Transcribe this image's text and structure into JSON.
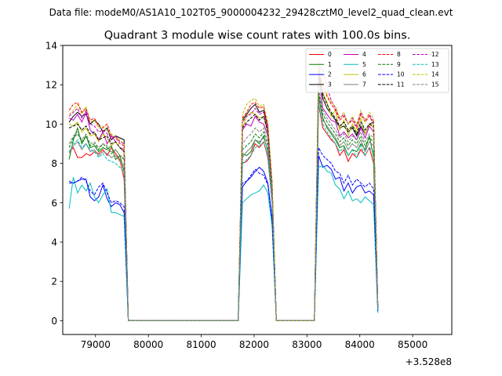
{
  "chart_data": {
    "type": "line",
    "suptitle": "Data file: modeM0/AS1A10_102T05_9000004232_29428cztM0_level2_quad_clean.evt",
    "title": "Quadrant 3 module wise count rates with 100.0s bins.",
    "xlabel": "",
    "ylabel": "",
    "x_offset_label": "+3.528e8",
    "xlim": [
      78380,
      85740
    ],
    "ylim": [
      -0.7,
      14
    ],
    "x_ticks": [
      79000,
      80000,
      81000,
      82000,
      83000,
      84000,
      85000
    ],
    "x_tick_labels": [
      "79000",
      "80000",
      "81000",
      "82000",
      "83000",
      "84000",
      "85000"
    ],
    "y_ticks": [
      0,
      2,
      4,
      6,
      8,
      10,
      12,
      14
    ],
    "y_tick_labels": [
      "0",
      "2",
      "4",
      "6",
      "8",
      "10",
      "12",
      "14"
    ],
    "legend_position": "upper-right",
    "series": [
      {
        "name": "0",
        "color": "#ff0000",
        "dashed": false,
        "seg1": [
          8.6,
          8.8,
          8.3,
          8.3,
          8.5,
          8.4,
          8.6,
          8.5,
          8.7,
          8.4,
          8.8,
          8.5,
          8.2,
          7.2
        ],
        "seg2": [
          8.0,
          8.1,
          8.4,
          9.0,
          8.8,
          9.1,
          8.3,
          6.0
        ],
        "seg3": [
          11.0,
          9.8,
          9.5,
          9.2,
          9.0,
          8.4,
          8.7,
          8.1,
          8.5,
          8.3,
          8.7,
          8.4,
          8.8,
          8.0,
          0.6
        ]
      },
      {
        "name": "1",
        "color": "#008000",
        "dashed": false,
        "seg1": [
          8.2,
          9.2,
          9.8,
          9.0,
          9.4,
          8.8,
          8.9,
          8.6,
          8.8,
          8.7,
          8.9,
          8.2,
          8.4,
          7.6
        ],
        "seg2": [
          8.5,
          8.4,
          8.6,
          9.2,
          9.0,
          9.4,
          8.6,
          6.2
        ],
        "seg3": [
          11.4,
          10.3,
          9.8,
          9.5,
          9.2,
          8.8,
          8.9,
          8.4,
          8.7,
          8.6,
          9.0,
          8.7,
          9.4,
          8.3,
          0.6
        ]
      },
      {
        "name": "2",
        "color": "#0000ff",
        "dashed": false,
        "seg1": [
          7.0,
          7.0,
          7.1,
          7.2,
          7.2,
          6.3,
          6.1,
          6.3,
          6.9,
          6.2,
          5.8,
          6.0,
          5.9,
          5.5
        ],
        "seg2": [
          6.8,
          7.1,
          7.3,
          7.6,
          7.8,
          7.6,
          7.0,
          5.2
        ],
        "seg3": [
          8.4,
          7.8,
          7.9,
          7.7,
          7.2,
          7.3,
          6.6,
          7.0,
          6.5,
          6.8,
          6.9,
          6.5,
          6.6,
          6.4,
          0.5
        ]
      },
      {
        "name": "3",
        "color": "#000000",
        "dashed": false,
        "seg1": [
          10.1,
          10.4,
          10.6,
          10.4,
          10.5,
          10.0,
          10.2,
          10.0,
          9.6,
          9.8,
          9.2,
          9.4,
          9.3,
          9.2
        ],
        "seg2": [
          10.2,
          10.5,
          10.8,
          11.0,
          10.6,
          10.7,
          9.8,
          7.0
        ],
        "seg3": [
          12.8,
          11.3,
          10.8,
          10.5,
          10.2,
          9.8,
          9.9,
          9.6,
          9.8,
          9.4,
          9.9,
          9.5,
          10.0,
          10.1,
          0.7
        ]
      },
      {
        "name": "4",
        "color": "#bf00bf",
        "dashed": false,
        "seg1": [
          10.3,
          10.2,
          10.5,
          10.1,
          10.6,
          9.7,
          9.5,
          9.2,
          9.6,
          9.0,
          9.4,
          9.1,
          8.8,
          8.7
        ],
        "seg2": [
          9.7,
          10.0,
          9.9,
          10.4,
          10.1,
          10.0,
          9.4,
          6.6
        ],
        "seg3": [
          12.5,
          10.8,
          10.5,
          10.2,
          10.1,
          9.4,
          9.6,
          9.3,
          9.5,
          9.2,
          9.8,
          9.3,
          9.9,
          9.6,
          0.7
        ]
      },
      {
        "name": "5",
        "color": "#00bfbf",
        "dashed": false,
        "seg1": [
          5.7,
          7.3,
          6.5,
          6.9,
          6.6,
          7.0,
          6.3,
          6.0,
          6.4,
          6.7,
          5.5,
          5.5,
          5.4,
          5.3
        ],
        "seg2": [
          6.0,
          6.2,
          6.4,
          6.5,
          6.6,
          6.9,
          6.5,
          4.8
        ],
        "seg3": [
          7.8,
          7.9,
          7.6,
          7.5,
          6.9,
          6.7,
          6.2,
          6.6,
          6.1,
          6.2,
          6.0,
          6.3,
          6.1,
          5.9,
          0.4
        ]
      },
      {
        "name": "6",
        "color": "#bfbf00",
        "dashed": false,
        "seg1": [
          10.0,
          9.9,
          10.1,
          9.6,
          9.8,
          9.4,
          9.5,
          9.1,
          9.5,
          9.3,
          8.9,
          9.1,
          8.8,
          8.6
        ],
        "seg2": [
          9.8,
          10.4,
          10.6,
          10.5,
          10.3,
          10.4,
          9.5,
          6.8
        ],
        "seg3": [
          13.0,
          11.6,
          11.1,
          10.4,
          10.7,
          9.7,
          10.2,
          9.4,
          10.0,
          9.6,
          10.3,
          9.5,
          10.0,
          9.8,
          0.7
        ]
      },
      {
        "name": "7",
        "color": "#808080",
        "dashed": false,
        "seg1": [
          8.5,
          8.9,
          9.1,
          8.7,
          9.0,
          8.6,
          8.7,
          8.4,
          8.6,
          8.5,
          8.3,
          8.4,
          8.1,
          7.9
        ],
        "seg2": [
          8.3,
          8.6,
          8.8,
          9.2,
          9.1,
          9.3,
          8.7,
          6.3
        ],
        "seg3": [
          11.3,
          10.2,
          9.9,
          9.6,
          9.3,
          8.9,
          9.1,
          8.7,
          9.0,
          8.8,
          9.2,
          8.6,
          9.1,
          8.9,
          0.6
        ]
      },
      {
        "name": "8",
        "color": "#ff0000",
        "dashed": true,
        "seg1": [
          10.7,
          11.0,
          11.1,
          10.6,
          10.8,
          10.2,
          10.3,
          9.9,
          9.8,
          10.0,
          9.4,
          9.3,
          9.0,
          8.9
        ],
        "seg2": [
          10.3,
          10.6,
          11.0,
          11.1,
          10.8,
          10.9,
          9.9,
          7.0
        ],
        "seg3": [
          12.6,
          12.0,
          11.4,
          11.0,
          10.7,
          10.2,
          10.4,
          10.0,
          10.2,
          9.8,
          10.5,
          10.1,
          10.4,
          10.0,
          0.7
        ]
      },
      {
        "name": "9",
        "color": "#008000",
        "dashed": true,
        "seg1": [
          8.8,
          9.3,
          9.5,
          9.1,
          9.4,
          8.9,
          9.0,
          8.7,
          9.0,
          8.8,
          8.5,
          8.7,
          8.4,
          8.2
        ],
        "seg2": [
          8.7,
          8.9,
          9.1,
          9.5,
          9.3,
          9.6,
          8.9,
          6.4
        ],
        "seg3": [
          11.6,
          10.5,
          10.1,
          9.8,
          9.5,
          9.1,
          9.3,
          8.9,
          9.2,
          9.0,
          9.4,
          8.9,
          9.3,
          9.1,
          0.6
        ]
      },
      {
        "name": "10",
        "color": "#0000ff",
        "dashed": true,
        "seg1": [
          7.1,
          7.0,
          7.1,
          7.3,
          7.1,
          6.6,
          6.4,
          6.8,
          7.0,
          6.5,
          6.0,
          6.1,
          6.0,
          5.8
        ],
        "seg2": [
          7.0,
          7.1,
          7.4,
          7.7,
          7.5,
          7.4,
          6.9,
          5.1
        ],
        "seg3": [
          8.8,
          8.4,
          8.2,
          8.0,
          7.6,
          7.5,
          7.0,
          7.4,
          6.9,
          7.2,
          7.0,
          6.8,
          7.0,
          6.7,
          0.5
        ]
      },
      {
        "name": "11",
        "color": "#000000",
        "dashed": true,
        "seg1": [
          9.8,
          9.9,
          10.0,
          9.7,
          9.9,
          9.5,
          9.6,
          9.2,
          9.3,
          9.4,
          9.0,
          9.1,
          8.8,
          8.6
        ],
        "seg2": [
          9.8,
          10.1,
          10.3,
          10.5,
          10.2,
          10.4,
          9.6,
          6.8
        ],
        "seg3": [
          12.4,
          11.5,
          11.0,
          10.6,
          10.3,
          9.9,
          10.1,
          9.7,
          9.9,
          9.5,
          10.1,
          9.7,
          10.0,
          9.9,
          0.7
        ]
      },
      {
        "name": "12",
        "color": "#bf00bf",
        "dashed": true,
        "seg1": [
          10.4,
          10.6,
          10.8,
          10.3,
          10.7,
          10.0,
          9.9,
          9.6,
          9.7,
          9.5,
          9.3,
          9.4,
          9.1,
          9.0
        ],
        "seg2": [
          10.1,
          10.4,
          10.5,
          10.8,
          10.5,
          10.6,
          9.7,
          6.9
        ],
        "seg3": [
          12.9,
          12.8,
          11.9,
          11.2,
          10.8,
          10.3,
          10.5,
          10.0,
          10.3,
          9.9,
          10.6,
          10.2,
          10.5,
          10.1,
          0.7
        ]
      },
      {
        "name": "13",
        "color": "#00bfbf",
        "dashed": true,
        "seg1": [
          8.6,
          9.0,
          9.2,
          8.8,
          9.0,
          8.7,
          8.6,
          8.3,
          8.5,
          8.2,
          8.1,
          8.0,
          7.8,
          7.6
        ],
        "seg2": [
          8.0,
          8.2,
          8.4,
          8.8,
          8.9,
          9.1,
          8.4,
          6.1
        ],
        "seg3": [
          11.0,
          10.0,
          9.6,
          9.3,
          9.0,
          8.6,
          8.8,
          8.4,
          8.7,
          8.3,
          8.9,
          8.4,
          8.8,
          8.6,
          0.6
        ]
      },
      {
        "name": "14",
        "color": "#bfbf00",
        "dashed": true,
        "seg1": [
          10.5,
          10.7,
          11.0,
          10.5,
          10.9,
          10.1,
          10.2,
          9.8,
          9.9,
          9.6,
          9.5,
          9.3,
          9.2,
          9.0
        ],
        "seg2": [
          10.5,
          11.0,
          11.2,
          11.3,
          10.9,
          11.0,
          10.1,
          7.1
        ],
        "seg3": [
          13.2,
          12.0,
          11.5,
          11.1,
          10.9,
          10.3,
          10.6,
          10.0,
          10.4,
          10.0,
          10.7,
          10.1,
          10.6,
          10.3,
          0.7
        ]
      },
      {
        "name": "15",
        "color": "#808080",
        "dashed": true,
        "seg1": [
          9.0,
          9.4,
          9.6,
          9.2,
          9.5,
          9.0,
          9.1,
          8.8,
          9.0,
          8.9,
          8.6,
          8.7,
          8.4,
          8.3
        ],
        "seg2": [
          9.0,
          9.3,
          9.5,
          9.8,
          9.6,
          9.8,
          9.1,
          6.5
        ],
        "seg3": [
          11.8,
          10.7,
          10.3,
          10.0,
          9.7,
          9.3,
          9.5,
          9.1,
          9.4,
          9.2,
          9.6,
          9.1,
          9.5,
          9.3,
          0.6
        ]
      }
    ]
  }
}
